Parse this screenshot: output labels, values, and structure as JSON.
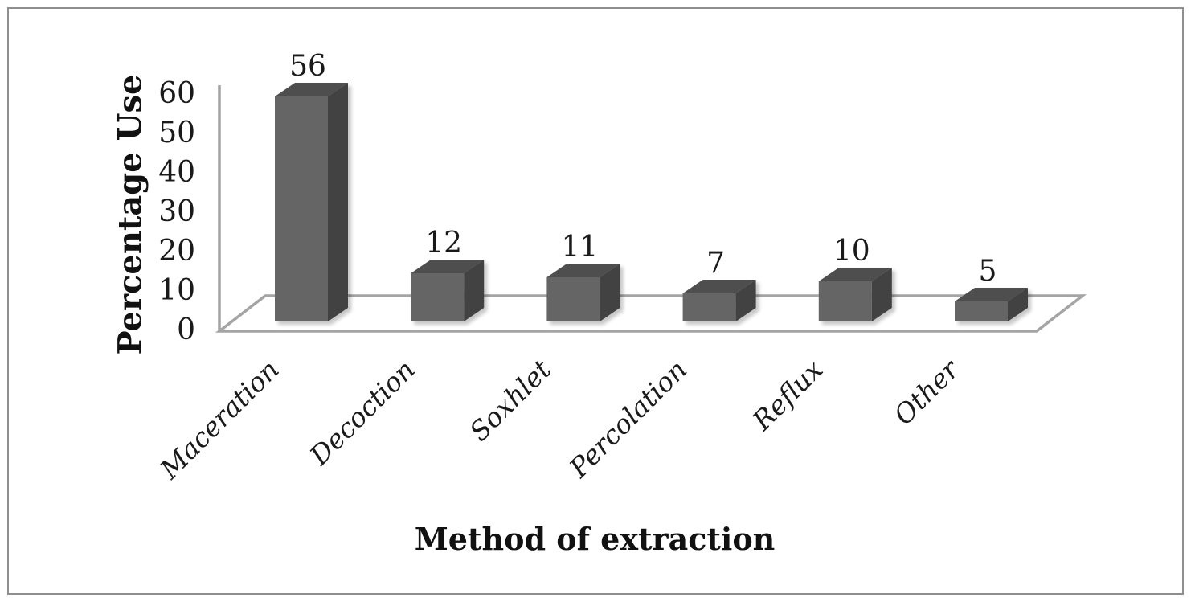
{
  "figure": {
    "background": "#ffffff",
    "border_color": "#8e8e8e"
  },
  "chart_data": {
    "type": "bar",
    "style": "3d-column",
    "title": "",
    "xlabel": "Method of extraction",
    "ylabel": "Percentage Use",
    "categories": [
      "Maceration",
      "Decoction",
      "Soxhlet",
      "Percolation",
      "Reflux",
      "Other"
    ],
    "values": [
      56,
      12,
      11,
      7,
      10,
      5
    ],
    "data_labels_shown": true,
    "yticks": [
      0,
      10,
      20,
      30,
      40,
      50,
      60
    ],
    "ylim": [
      0,
      60
    ],
    "grid": false,
    "legend": "none",
    "colors": {
      "bar_front": "#656565",
      "bar_top": "#4e4e4e",
      "bar_side": "#424242",
      "axis_line": "#a4a4a4",
      "text": "#1a1a1a"
    }
  }
}
